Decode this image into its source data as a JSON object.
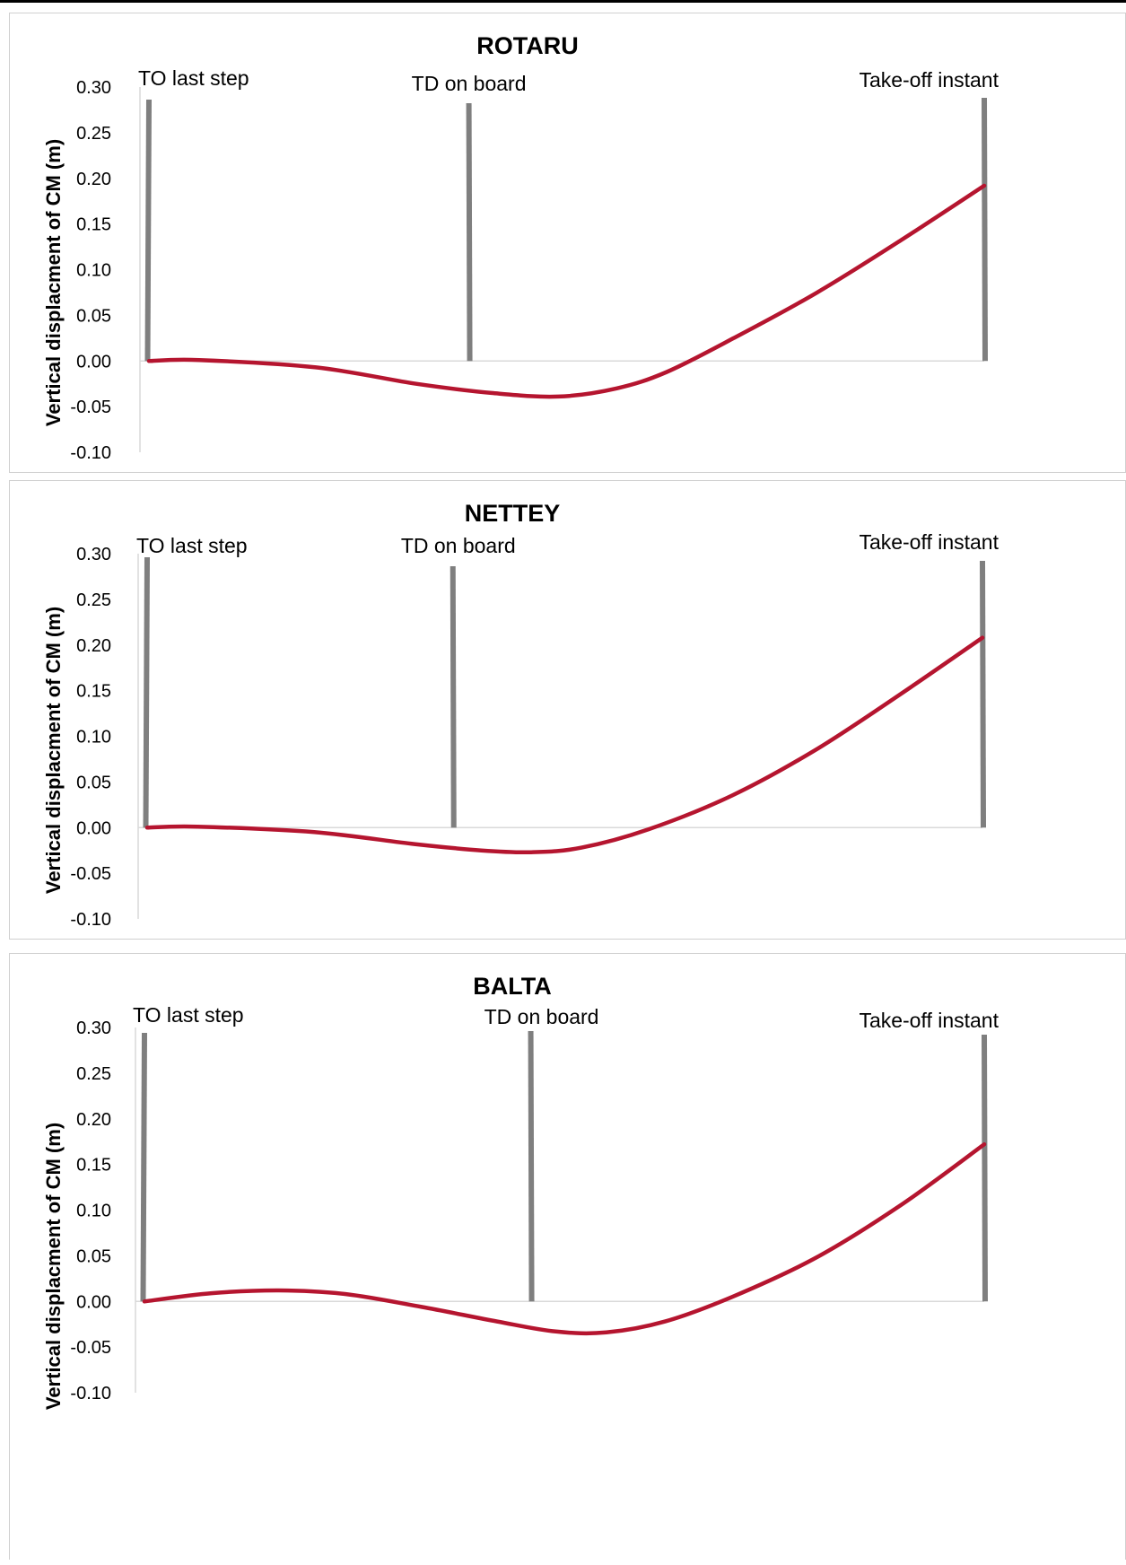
{
  "chart_data": [
    {
      "type": "line",
      "title": "ROTARU",
      "ylabel": "Vertical displacment of CM (m)",
      "xlabel": "",
      "ylim": [
        -0.1,
        0.3
      ],
      "yticks": [
        "0.30",
        "0.25",
        "0.20",
        "0.15",
        "0.10",
        "0.05",
        "0.00",
        "-0.05",
        "-0.10"
      ],
      "xlim": [
        0,
        1
      ],
      "events": [
        {
          "label": "TO last step",
          "x": 0.0
        },
        {
          "label": "TD on board",
          "x": 0.383
        },
        {
          "label": "Take-off instant",
          "x": 1.0
        }
      ],
      "series": [
        {
          "x": [
            0,
            0.06,
            0.2,
            0.32,
            0.41,
            0.49,
            0.56,
            0.62,
            0.7,
            0.8,
            0.9,
            1.0
          ],
          "values": [
            0.0,
            0.001,
            -0.007,
            -0.025,
            -0.035,
            -0.039,
            -0.03,
            -0.012,
            0.025,
            0.075,
            0.132,
            0.192
          ]
        }
      ],
      "colors": {
        "line": "#b5152f",
        "event": "#7f7f7f",
        "axis": "#d9d9d9"
      }
    },
    {
      "type": "line",
      "title": "NETTEY",
      "ylabel": "Vertical displacment of CM (m)",
      "xlabel": "",
      "ylim": [
        -0.1,
        0.3
      ],
      "yticks": [
        "0.30",
        "0.25",
        "0.20",
        "0.15",
        "0.10",
        "0.05",
        "0.00",
        "-0.05",
        "-0.10"
      ],
      "xlim": [
        0,
        1
      ],
      "events": [
        {
          "label": "TO last step",
          "x": 0.0
        },
        {
          "label": "TD on board",
          "x": 0.366
        },
        {
          "label": "Take-off instant",
          "x": 1.0
        }
      ],
      "series": [
        {
          "x": [
            0,
            0.06,
            0.2,
            0.32,
            0.4,
            0.46,
            0.52,
            0.6,
            0.7,
            0.8,
            0.9,
            1.0
          ],
          "values": [
            0.0,
            0.001,
            -0.005,
            -0.018,
            -0.025,
            -0.027,
            -0.022,
            -0.002,
            0.035,
            0.085,
            0.145,
            0.208
          ]
        }
      ],
      "colors": {
        "line": "#b5152f",
        "event": "#7f7f7f",
        "axis": "#d9d9d9"
      }
    },
    {
      "type": "line",
      "title": "BALTA",
      "ylabel": "Vertical displacment of CM (m)",
      "xlabel": "",
      "ylim": [
        -0.1,
        0.3
      ],
      "yticks": [
        "0.30",
        "0.25",
        "0.20",
        "0.15",
        "0.10",
        "0.05",
        "0.00",
        "-0.05",
        "-0.10"
      ],
      "xlim": [
        0,
        1
      ],
      "events": [
        {
          "label": "TO last step",
          "x": 0.0
        },
        {
          "label": "TD on board",
          "x": 0.46
        },
        {
          "label": "Take-off instant",
          "x": 1.0
        }
      ],
      "series": [
        {
          "x": [
            0,
            0.08,
            0.16,
            0.24,
            0.33,
            0.42,
            0.49,
            0.55,
            0.62,
            0.7,
            0.8,
            0.9,
            1.0
          ],
          "values": [
            0.0,
            0.009,
            0.012,
            0.008,
            -0.006,
            -0.022,
            -0.033,
            -0.034,
            -0.022,
            0.005,
            0.048,
            0.105,
            0.172
          ]
        }
      ],
      "colors": {
        "line": "#b5152f",
        "event": "#7f7f7f",
        "axis": "#d9d9d9"
      }
    }
  ]
}
